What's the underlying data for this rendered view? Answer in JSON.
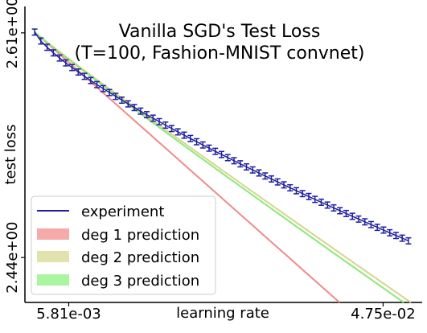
{
  "chart_data": {
    "type": "line",
    "title": "Vanilla SGD's Test Loss",
    "subtitle": "(T=100, Fashion-MNIST convnet)",
    "xlabel": "learning rate",
    "ylabel": "test loss",
    "x_ticks": [
      0.00581,
      0.0475
    ],
    "x_tick_labels": [
      "5.81e-03",
      "4.75e-02"
    ],
    "y_ticks": [
      2.44,
      2.61
    ],
    "y_tick_labels": [
      "2.44e+00",
      "2.61e+00"
    ],
    "xlim": [
      0.0,
      0.05268
    ],
    "ylim": [
      2.406,
      2.63
    ],
    "legend_position": "lower-left",
    "series": [
      {
        "name": "experiment",
        "color": "#1f1fa0",
        "kind": "errorbar",
        "x_start": 0.00129,
        "x_end": 0.05086,
        "n_points": 61,
        "y_start": 2.6106,
        "y_end": 2.4526,
        "curve_power": 0.77,
        "error_half_width": 0.0023
      },
      {
        "name": "deg 1 prediction",
        "color": "#f08a8a",
        "kind": "line",
        "x_start": 0.00129,
        "y_start": 2.6106,
        "x_end": 0.04172,
        "y_end": 2.406,
        "curve_power": 1.0
      },
      {
        "name": "deg 2 prediction",
        "color": "#d6d68a",
        "kind": "line",
        "x_start": 0.00129,
        "y_start": 2.6106,
        "x_end": 0.05118,
        "y_end": 2.406,
        "curve_power": 0.965
      },
      {
        "name": "deg 3 prediction",
        "color": "#8de87a",
        "kind": "line",
        "x_start": 0.00129,
        "y_start": 2.6106,
        "x_end": 0.05022,
        "y_end": 2.406,
        "curve_power": 0.96
      }
    ]
  }
}
